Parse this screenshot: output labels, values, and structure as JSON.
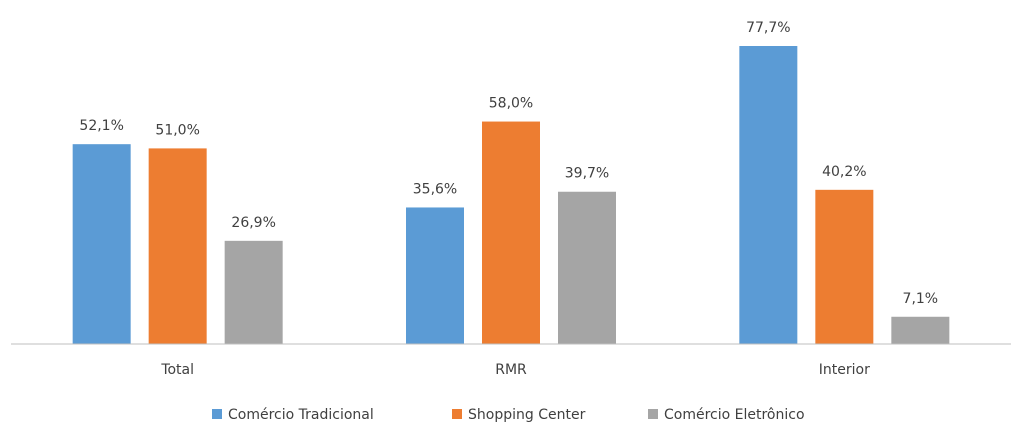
{
  "chart_data": {
    "type": "bar",
    "categories": [
      "Total",
      "RMR",
      "Interior"
    ],
    "series": [
      {
        "name": "Comércio Tradicional",
        "color": "#5b9bd5",
        "values": [
          52.1,
          35.6,
          77.7
        ],
        "value_labels": [
          "52,1%",
          "35,6%",
          "77,7%"
        ]
      },
      {
        "name": "Shopping Center",
        "color": "#ed7d31",
        "values": [
          51.0,
          58.0,
          40.2
        ],
        "value_labels": [
          "51,0%",
          "58,0%",
          "40,2%"
        ]
      },
      {
        "name": "Comércio Eletrônico",
        "color": "#a5a5a5",
        "values": [
          26.9,
          39.7,
          7.1
        ],
        "value_labels": [
          "26,9%",
          "39,7%",
          "7,1%"
        ]
      }
    ],
    "legend": "bottom"
  }
}
